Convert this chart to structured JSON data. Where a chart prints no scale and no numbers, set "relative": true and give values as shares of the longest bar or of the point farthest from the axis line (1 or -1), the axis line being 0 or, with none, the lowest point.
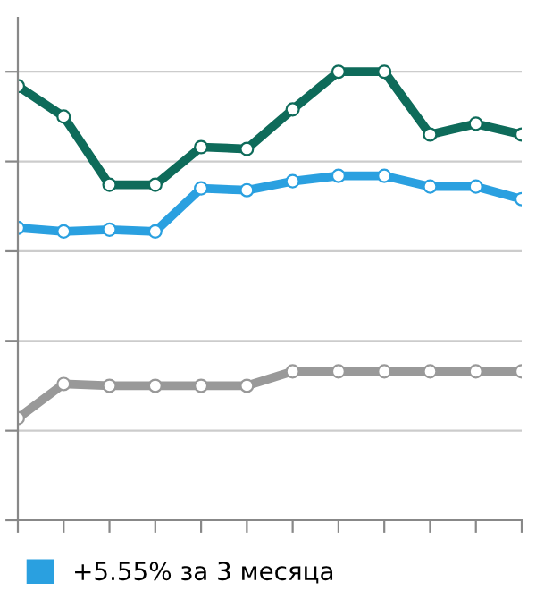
{
  "chart_data": {
    "type": "line",
    "relative": true,
    "grid": "y",
    "marker": "circle",
    "line_style": "solid",
    "legend": "bottom left",
    "categories": [
      null,
      null,
      null,
      null,
      null,
      null,
      null,
      null,
      null,
      null,
      null,
      null
    ],
    "series": [
      {
        "color": "#0e6b5a",
        "values": [
          0.968,
          0.9,
          0.748,
          0.748,
          0.832,
          0.828,
          0.916,
          1.0,
          1.0,
          0.86,
          0.884,
          0.86
        ]
      },
      {
        "name": "+5.55% за 3 месяца",
        "color": "#2aa0e0",
        "values": [
          0.652,
          0.644,
          0.648,
          0.644,
          0.74,
          0.736,
          0.756,
          0.768,
          0.768,
          0.744,
          0.744,
          0.716
        ]
      },
      {
        "color": "#999999",
        "values": [
          0.228,
          0.304,
          0.3,
          0.3,
          0.3,
          0.3,
          0.332,
          0.332,
          0.332,
          0.332,
          0.332,
          0.332
        ]
      }
    ]
  }
}
